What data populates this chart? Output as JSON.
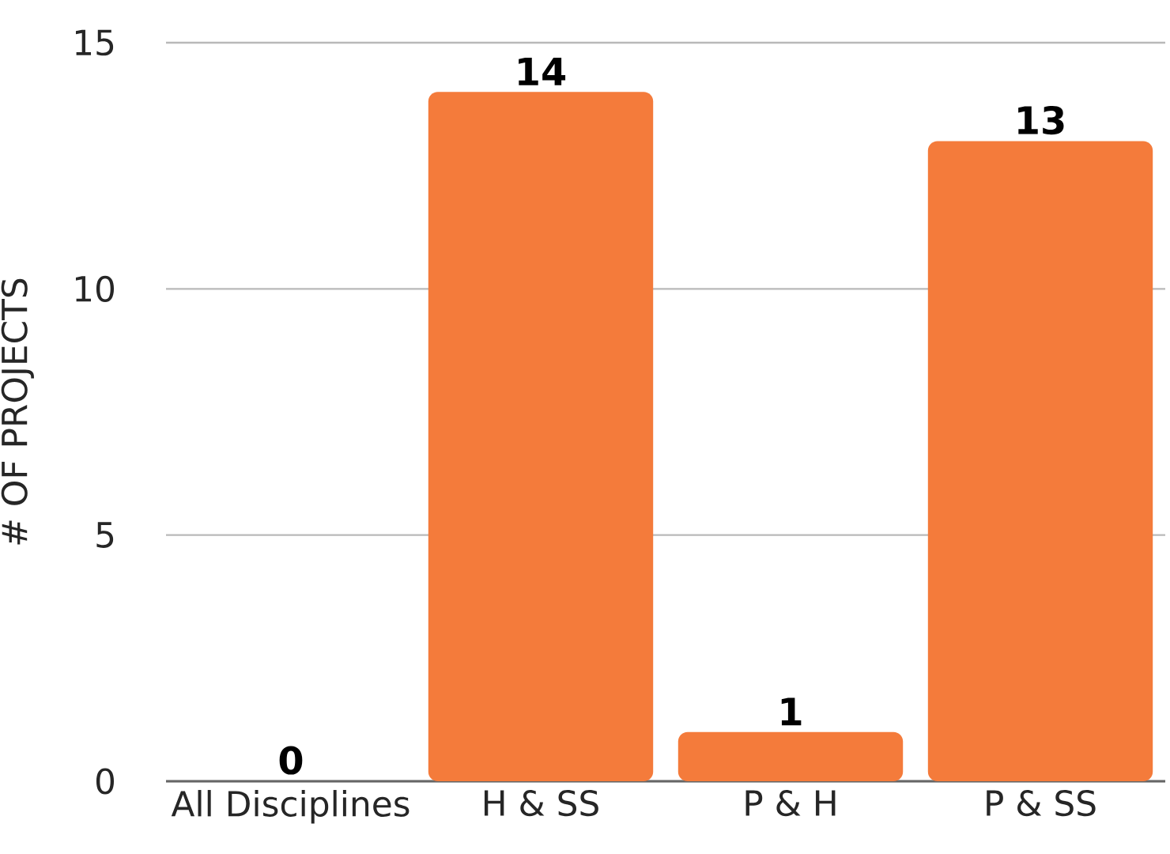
{
  "chart_data": {
    "type": "bar",
    "ylabel": "# OF PROJECTS",
    "categories": [
      "All Disciplines",
      "H & SS",
      "P & H",
      "P & SS"
    ],
    "values": [
      0,
      14,
      1,
      13
    ],
    "color": "#f47b3b",
    "ylim": [
      0,
      15
    ],
    "yticks": [
      0,
      5,
      10,
      15
    ],
    "grid": "y",
    "data_labels": true
  }
}
